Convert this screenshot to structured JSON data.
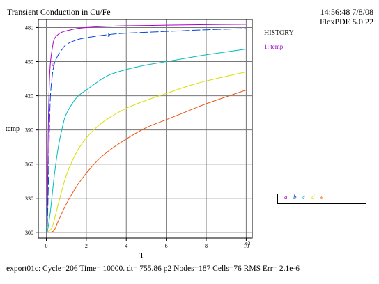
{
  "title": "Transient Conduction in Cu/Fe",
  "stamp": {
    "time": "14:56:48 7/8/08",
    "version": "FlexPDE 5.0.22"
  },
  "history": {
    "title": "HISTORY",
    "entry": "1: temp",
    "entry_color": "#9900cc"
  },
  "footer": "export01c:  Cycle=206  Time= 10000.  dt= 755.86  p2  Nodes=187 Cells=76 RMS Err= 2.1e-6",
  "chart_data": {
    "type": "line",
    "xlabel": "T",
    "ylabel": "temp",
    "x_multiplier": "e3",
    "xlim": [
      -0.4,
      10.3
    ],
    "ylim": [
      295,
      487
    ],
    "xticks": [
      0,
      2,
      4,
      6,
      8,
      10
    ],
    "yticks": [
      300,
      330,
      360,
      390,
      420,
      450,
      480
    ],
    "ytick_labels": [
      "300",
      "330",
      "360",
      "390",
      "420",
      "450",
      "480"
    ],
    "grid": true,
    "series": [
      {
        "marker": "a",
        "color": "#aa00cc",
        "dash": "solid",
        "x": [
          0.05,
          0.1,
          0.15,
          0.2,
          0.3,
          0.4,
          0.6,
          0.8,
          1.0,
          1.5,
          2,
          3,
          4,
          6,
          8,
          10
        ],
        "y": [
          310,
          395,
          430,
          448,
          462,
          470,
          474,
          476,
          477,
          479,
          480,
          481,
          481.5,
          482,
          482.5,
          482.8
        ]
      },
      {
        "marker": "b",
        "color": "#0044dd",
        "dash": "dashed",
        "x": [
          0.05,
          0.1,
          0.15,
          0.2,
          0.3,
          0.4,
          0.6,
          0.8,
          1.0,
          1.5,
          2,
          3,
          4,
          6,
          8,
          10
        ],
        "y": [
          305,
          340,
          385,
          418,
          438,
          448,
          456,
          461,
          465,
          469,
          471,
          473.5,
          475,
          476.5,
          478,
          479
        ]
      },
      {
        "marker": "c",
        "color": "#00bbbb",
        "dash": "solid",
        "x": [
          0.05,
          0.2,
          0.4,
          0.6,
          0.8,
          1.0,
          1.5,
          2,
          3,
          4,
          5,
          6,
          7,
          8,
          10
        ],
        "y": [
          300,
          318,
          350,
          375,
          392,
          404,
          418,
          425,
          437,
          443,
          447,
          450,
          453,
          456,
          461
        ]
      },
      {
        "marker": "d",
        "color": "#dddd00",
        "dash": "solid",
        "x": [
          0.05,
          0.3,
          0.6,
          1.0,
          1.5,
          2,
          2.5,
          3,
          4,
          5,
          6,
          7,
          8,
          10
        ],
        "y": [
          300,
          305,
          325,
          350,
          370,
          383,
          392,
          399,
          409,
          416,
          422,
          428,
          433,
          441
        ]
      },
      {
        "marker": "e",
        "color": "#ee5511",
        "dash": "solid",
        "x": [
          0.2,
          0.4,
          0.6,
          1.0,
          1.5,
          2,
          2.5,
          3,
          4,
          5,
          6,
          7,
          8,
          10
        ],
        "y": [
          300,
          302,
          310,
          325,
          340,
          352,
          362,
          370,
          382,
          392,
          399,
          406,
          413,
          425
        ]
      }
    ]
  }
}
